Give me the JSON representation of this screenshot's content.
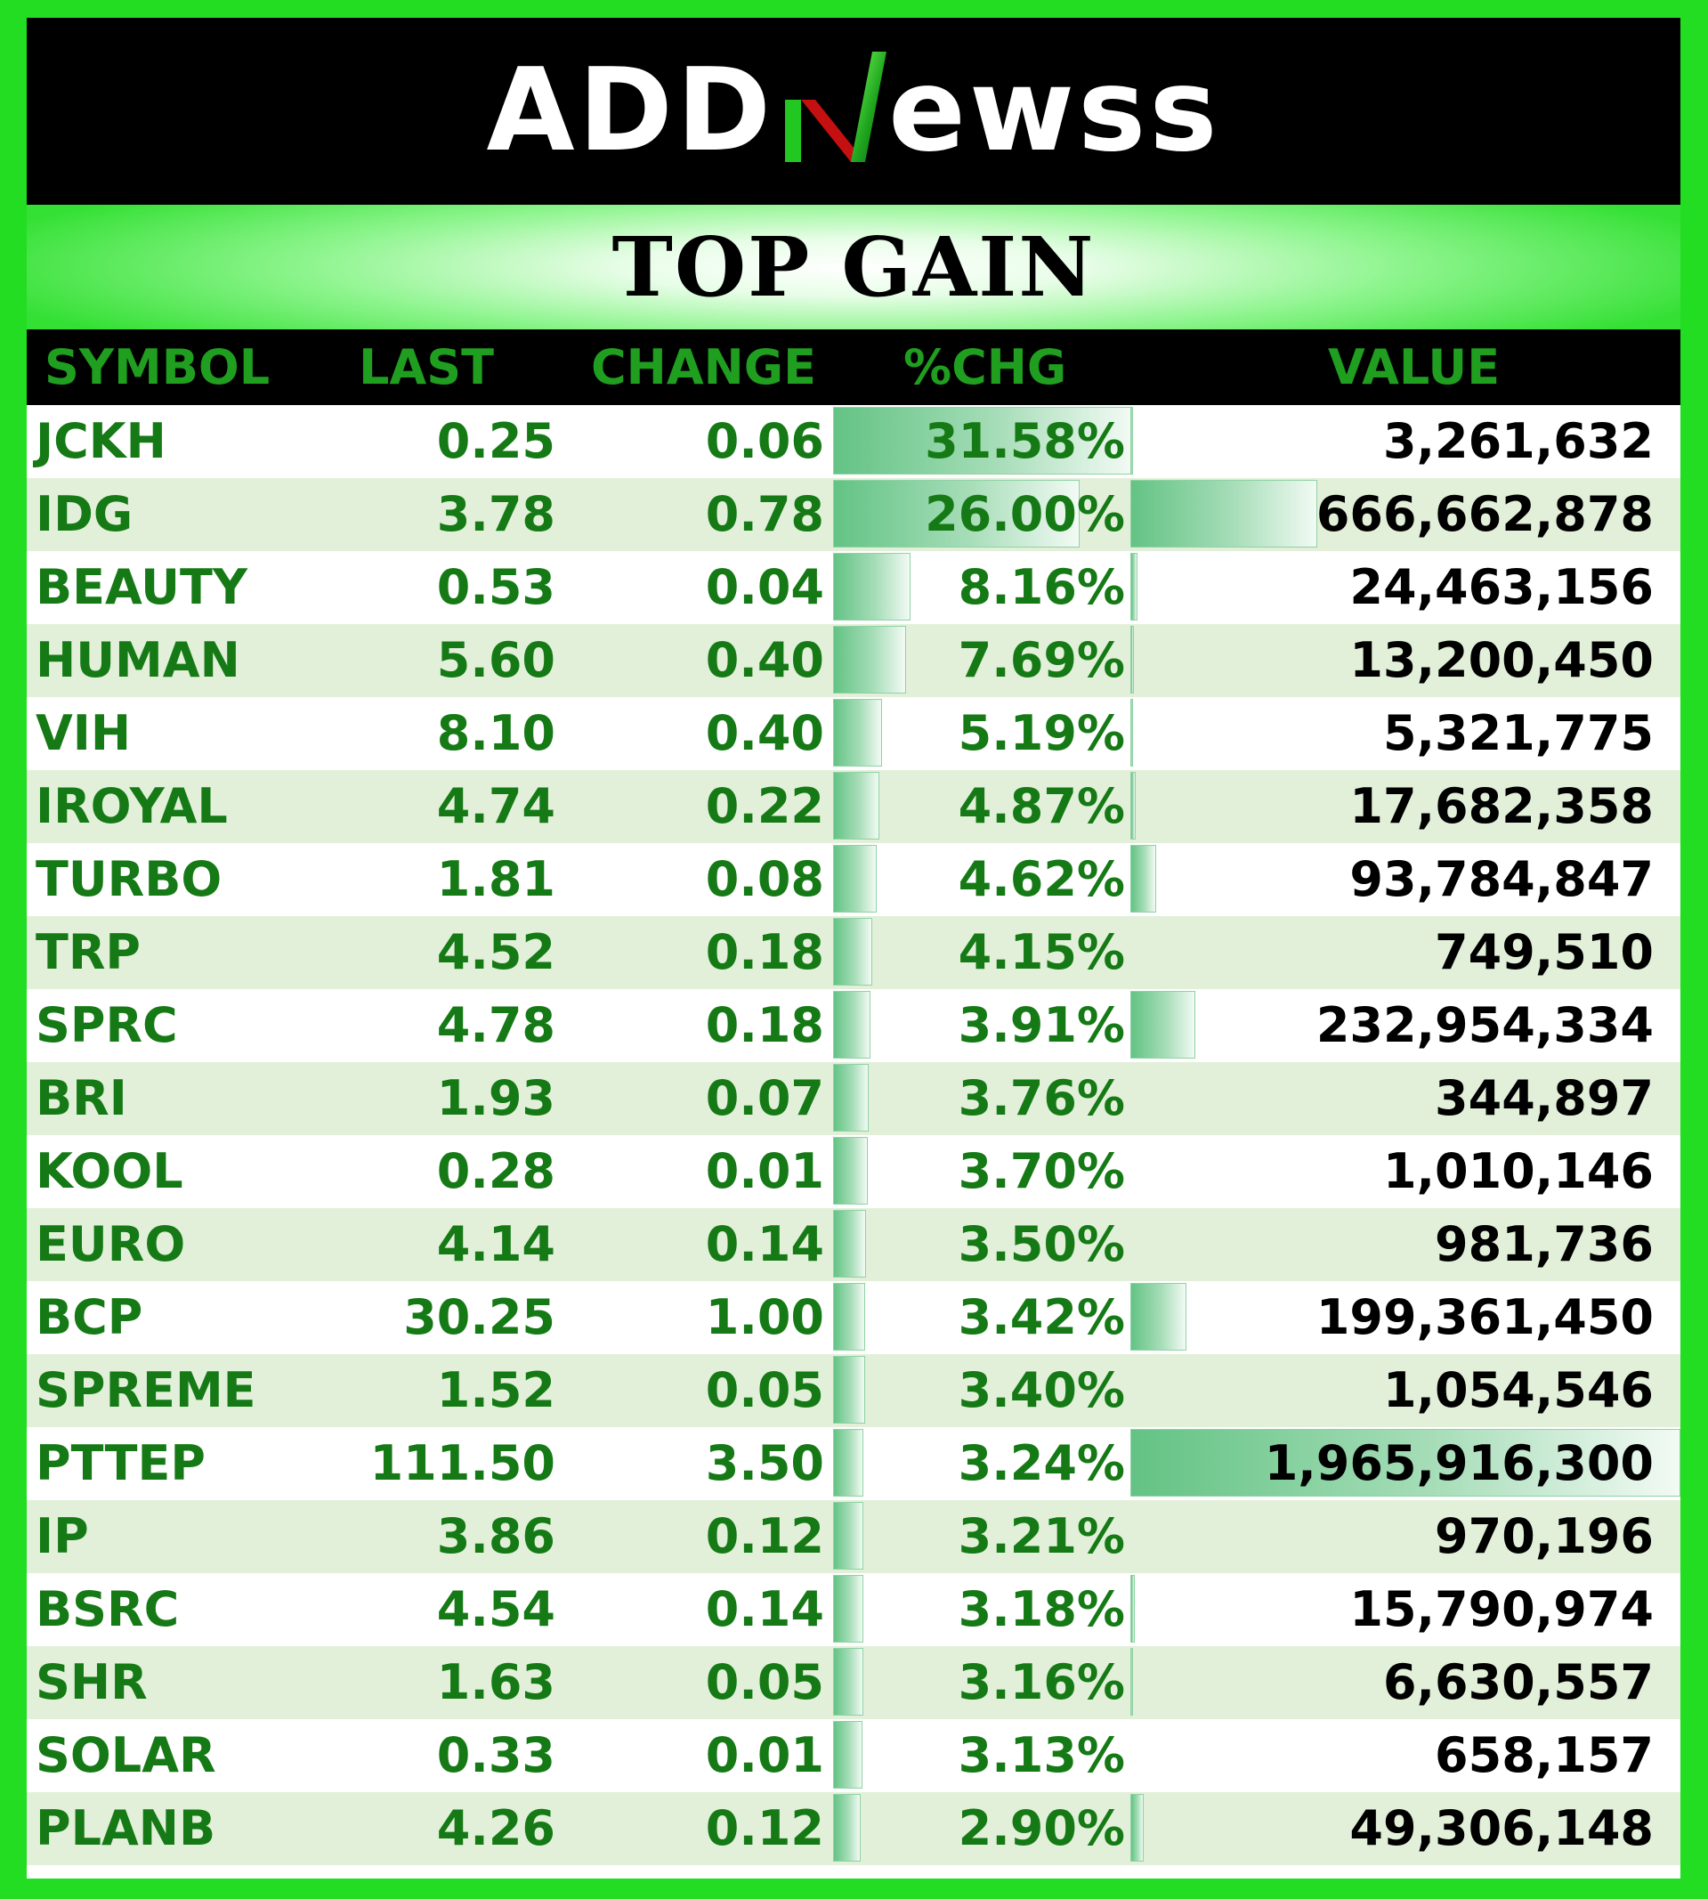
{
  "logo": {
    "left": "ADD",
    "mid": "N",
    "right": "ewss"
  },
  "banner": {
    "title": "TOP GAIN"
  },
  "columns": {
    "symbol": "SYMBOL",
    "last": "LAST",
    "change": "CHANGE",
    "pct": "%CHG",
    "value": "VALUE"
  },
  "colors": {
    "frame": "#22dd22",
    "header_text": "#1f9e1f",
    "row_text": "#157a15",
    "alt_row": "#e2f0d9",
    "bar": "#63c384"
  },
  "rows": [
    {
      "symbol": "JCKH",
      "last": "0.25",
      "change": "0.06",
      "pct": "31.58%",
      "value": "3,261,632",
      "pct_num": 31.58,
      "value_num": 3261632
    },
    {
      "symbol": "IDG",
      "last": "3.78",
      "change": "0.78",
      "pct": "26.00%",
      "value": "666,662,878",
      "pct_num": 26.0,
      "value_num": 666662878
    },
    {
      "symbol": "BEAUTY",
      "last": "0.53",
      "change": "0.04",
      "pct": "8.16%",
      "value": "24,463,156",
      "pct_num": 8.16,
      "value_num": 24463156
    },
    {
      "symbol": "HUMAN",
      "last": "5.60",
      "change": "0.40",
      "pct": "7.69%",
      "value": "13,200,450",
      "pct_num": 7.69,
      "value_num": 13200450
    },
    {
      "symbol": "VIH",
      "last": "8.10",
      "change": "0.40",
      "pct": "5.19%",
      "value": "5,321,775",
      "pct_num": 5.19,
      "value_num": 5321775
    },
    {
      "symbol": "IROYAL",
      "last": "4.74",
      "change": "0.22",
      "pct": "4.87%",
      "value": "17,682,358",
      "pct_num": 4.87,
      "value_num": 17682358
    },
    {
      "symbol": "TURBO",
      "last": "1.81",
      "change": "0.08",
      "pct": "4.62%",
      "value": "93,784,847",
      "pct_num": 4.62,
      "value_num": 93784847
    },
    {
      "symbol": "TRP",
      "last": "4.52",
      "change": "0.18",
      "pct": "4.15%",
      "value": "749,510",
      "pct_num": 4.15,
      "value_num": 749510
    },
    {
      "symbol": "SPRC",
      "last": "4.78",
      "change": "0.18",
      "pct": "3.91%",
      "value": "232,954,334",
      "pct_num": 3.91,
      "value_num": 232954334
    },
    {
      "symbol": "BRI",
      "last": "1.93",
      "change": "0.07",
      "pct": "3.76%",
      "value": "344,897",
      "pct_num": 3.76,
      "value_num": 344897
    },
    {
      "symbol": "KOOL",
      "last": "0.28",
      "change": "0.01",
      "pct": "3.70%",
      "value": "1,010,146",
      "pct_num": 3.7,
      "value_num": 1010146
    },
    {
      "symbol": "EURO",
      "last": "4.14",
      "change": "0.14",
      "pct": "3.50%",
      "value": "981,736",
      "pct_num": 3.5,
      "value_num": 981736
    },
    {
      "symbol": "BCP",
      "last": "30.25",
      "change": "1.00",
      "pct": "3.42%",
      "value": "199,361,450",
      "pct_num": 3.42,
      "value_num": 199361450
    },
    {
      "symbol": "SPREME",
      "last": "1.52",
      "change": "0.05",
      "pct": "3.40%",
      "value": "1,054,546",
      "pct_num": 3.4,
      "value_num": 1054546
    },
    {
      "symbol": "PTTEP",
      "last": "111.50",
      "change": "3.50",
      "pct": "3.24%",
      "value": "1,965,916,300",
      "pct_num": 3.24,
      "value_num": 1965916300
    },
    {
      "symbol": "IP",
      "last": "3.86",
      "change": "0.12",
      "pct": "3.21%",
      "value": "970,196",
      "pct_num": 3.21,
      "value_num": 970196
    },
    {
      "symbol": "BSRC",
      "last": "4.54",
      "change": "0.14",
      "pct": "3.18%",
      "value": "15,790,974",
      "pct_num": 3.18,
      "value_num": 15790974
    },
    {
      "symbol": "SHR",
      "last": "1.63",
      "change": "0.05",
      "pct": "3.16%",
      "value": "6,630,557",
      "pct_num": 3.16,
      "value_num": 6630557
    },
    {
      "symbol": "SOLAR",
      "last": "0.33",
      "change": "0.01",
      "pct": "3.13%",
      "value": "658,157",
      "pct_num": 3.13,
      "value_num": 658157
    },
    {
      "symbol": "PLANB",
      "last": "4.26",
      "change": "0.12",
      "pct": "2.90%",
      "value": "49,306,148",
      "pct_num": 2.9,
      "value_num": 49306148
    }
  ]
}
